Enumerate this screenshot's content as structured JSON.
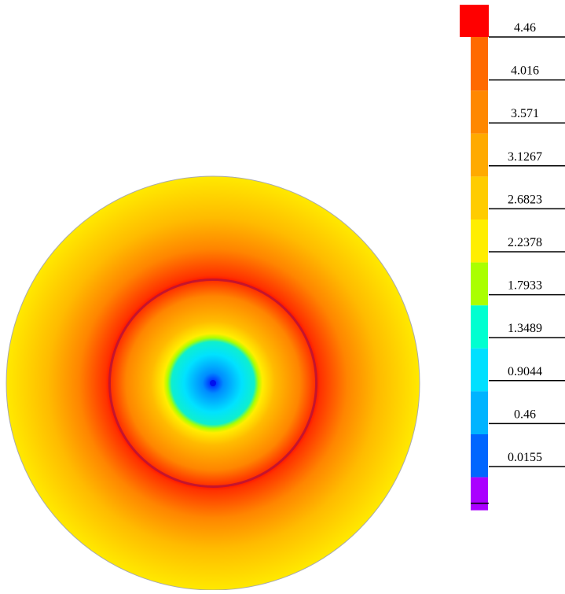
{
  "chart_data": {
    "type": "heatmap",
    "title": "",
    "plot": {
      "shape": "disc",
      "field": "radial",
      "center_value": 0.0155,
      "radial_profile": [
        {
          "r": 0.0,
          "value": 0.0155
        },
        {
          "r": 0.05,
          "value": 0.35
        },
        {
          "r": 0.14,
          "value": 0.85
        },
        {
          "r": 0.2,
          "value": 1.3
        },
        {
          "r": 0.22,
          "value": 1.8
        },
        {
          "r": 0.24,
          "value": 2.24
        },
        {
          "r": 0.3,
          "value": 2.9
        },
        {
          "r": 0.42,
          "value": 3.6
        },
        {
          "r": 0.495,
          "value": 4.3
        },
        {
          "r": 0.505,
          "value": 4.46
        },
        {
          "r": 0.52,
          "value": 4.3
        },
        {
          "r": 0.65,
          "value": 3.6
        },
        {
          "r": 0.8,
          "value": 2.9
        },
        {
          "r": 1.0,
          "value": 2.3
        }
      ],
      "ring_radius": 0.5,
      "ring_color": "#b0103c",
      "edge_color": "#aaaaaa"
    },
    "colorbar": {
      "labels": [
        "4.46",
        "4.016",
        "3.571",
        "3.1267",
        "2.6823",
        "2.2378",
        "1.7933",
        "1.3489",
        "0.9044",
        "0.46",
        "0.0155"
      ],
      "swatches": [
        "#ff0000",
        "#ff6a00",
        "#ff8800",
        "#ffaa00",
        "#ffcc00",
        "#ffee00",
        "#aaff00",
        "#00ffd0",
        "#00e0ff",
        "#00b4ff",
        "#0066ff",
        "#aa00ff"
      ],
      "range": [
        0.0155,
        4.46
      ]
    },
    "colormap": [
      {
        "value": 0.0155,
        "color": "#0018ff"
      },
      {
        "value": 0.46,
        "color": "#00b4ff"
      },
      {
        "value": 0.9044,
        "color": "#00e8ff"
      },
      {
        "value": 1.3489,
        "color": "#10f0c8"
      },
      {
        "value": 1.7933,
        "color": "#aaff00"
      },
      {
        "value": 2.2378,
        "color": "#ffee00"
      },
      {
        "value": 2.6823,
        "color": "#ffcc00"
      },
      {
        "value": 3.1267,
        "color": "#ffaa00"
      },
      {
        "value": 3.571,
        "color": "#ff8800"
      },
      {
        "value": 4.016,
        "color": "#ff5a00"
      },
      {
        "value": 4.46,
        "color": "#ff1a00"
      }
    ]
  }
}
